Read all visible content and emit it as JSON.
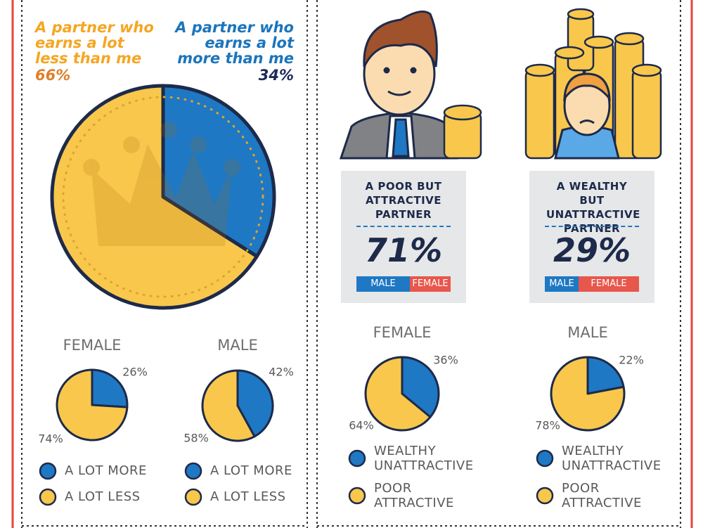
{
  "chart_data": [
    {
      "type": "pie",
      "categories": [
        "A partner who earns a lot more than me",
        "A partner who earns a lot less than me"
      ],
      "values": [
        34,
        66
      ],
      "value_labels": [
        "34%",
        "66%"
      ],
      "colors": [
        "#1e78c4",
        "#f8c74c"
      ]
    },
    {
      "type": "pie",
      "title": "FEMALE",
      "categories": [
        "A LOT MORE",
        "A LOT LESS"
      ],
      "values": [
        26,
        74
      ],
      "value_labels": [
        "26%",
        "74%"
      ],
      "colors": [
        "#1e78c4",
        "#f8c74c"
      ]
    },
    {
      "type": "pie",
      "title": "MALE",
      "categories": [
        "A LOT MORE",
        "A LOT LESS"
      ],
      "values": [
        42,
        58
      ],
      "value_labels": [
        "42%",
        "58%"
      ],
      "colors": [
        "#1e78c4",
        "#f8c74c"
      ]
    },
    {
      "type": "pie",
      "title": "FEMALE",
      "categories": [
        "WEALTHY UNATTRACTIVE",
        "POOR ATTRACTIVE"
      ],
      "values": [
        36,
        64
      ],
      "value_labels": [
        "36%",
        "64%"
      ],
      "colors": [
        "#1e78c4",
        "#f8c74c"
      ]
    },
    {
      "type": "pie",
      "title": "MALE",
      "categories": [
        "WEALTHY UNATTRACTIVE",
        "POOR ATTRACTIVE"
      ],
      "values": [
        22,
        78
      ],
      "value_labels": [
        "22%",
        "78%"
      ],
      "colors": [
        "#1e78c4",
        "#f8c74c"
      ]
    }
  ],
  "cards": [
    {
      "label": "A POOR BUT ATTRACTIVE PARTNER",
      "value": "71%",
      "legend": [
        "MALE",
        "FEMALE"
      ]
    },
    {
      "label": "A WEALTHY BUT UNATTRACTIVE PARTNER",
      "value": "29%",
      "legend": [
        "MALE",
        "FEMALE"
      ]
    }
  ]
}
